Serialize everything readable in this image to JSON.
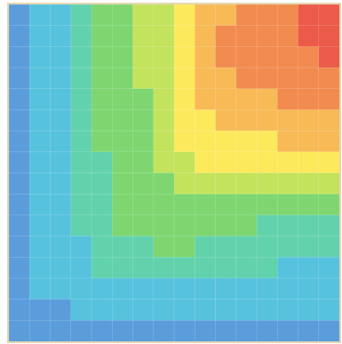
{
  "chart_data": {
    "type": "heatmap",
    "colors": [
      "#5b9ddb",
      "#57c2de",
      "#62d2ad",
      "#7fd670",
      "#c4e35d",
      "#fde95c",
      "#f7ba57",
      "#f28b4f",
      "#ec5a4a"
    ],
    "grid": true,
    "values": [
      [
        0,
        1,
        1,
        2,
        3,
        3,
        4,
        4,
        5,
        6,
        6,
        7,
        7,
        7,
        8,
        8
      ],
      [
        0,
        1,
        1,
        2,
        3,
        3,
        4,
        4,
        5,
        6,
        7,
        7,
        7,
        7,
        8,
        8
      ],
      [
        0,
        1,
        1,
        2,
        3,
        3,
        4,
        4,
        5,
        6,
        7,
        7,
        7,
        7,
        7,
        8
      ],
      [
        0,
        1,
        1,
        2,
        3,
        3,
        4,
        4,
        5,
        6,
        6,
        7,
        7,
        7,
        7,
        7
      ],
      [
        0,
        1,
        1,
        2,
        3,
        3,
        3,
        4,
        5,
        6,
        6,
        6,
        6,
        7,
        7,
        7
      ],
      [
        0,
        1,
        1,
        2,
        3,
        3,
        3,
        4,
        5,
        5,
        6,
        6,
        6,
        6,
        6,
        6
      ],
      [
        0,
        1,
        1,
        2,
        3,
        3,
        3,
        4,
        5,
        5,
        5,
        5,
        5,
        6,
        6,
        6
      ],
      [
        0,
        1,
        1,
        2,
        2,
        3,
        3,
        4,
        4,
        5,
        5,
        5,
        5,
        5,
        5,
        5
      ],
      [
        0,
        1,
        1,
        2,
        2,
        3,
        3,
        3,
        4,
        4,
        4,
        4,
        4,
        4,
        4,
        4
      ],
      [
        0,
        1,
        1,
        2,
        2,
        3,
        3,
        3,
        3,
        3,
        3,
        3,
        3,
        3,
        3,
        3
      ],
      [
        0,
        1,
        1,
        2,
        2,
        3,
        3,
        3,
        3,
        3,
        3,
        3,
        2,
        2,
        2,
        2
      ],
      [
        0,
        1,
        1,
        1,
        2,
        2,
        2,
        3,
        3,
        2,
        2,
        2,
        2,
        2,
        2,
        2
      ],
      [
        0,
        1,
        1,
        1,
        2,
        2,
        2,
        2,
        2,
        2,
        2,
        2,
        2,
        1,
        1,
        1
      ],
      [
        0,
        1,
        1,
        1,
        1,
        1,
        1,
        1,
        1,
        1,
        1,
        1,
        1,
        1,
        1,
        1
      ],
      [
        0,
        0,
        0,
        1,
        1,
        1,
        1,
        1,
        1,
        1,
        1,
        1,
        1,
        1,
        1,
        1
      ],
      [
        0,
        0,
        0,
        0,
        0,
        0,
        0,
        0,
        0,
        0,
        0,
        0,
        0,
        0,
        0,
        0
      ]
    ]
  }
}
